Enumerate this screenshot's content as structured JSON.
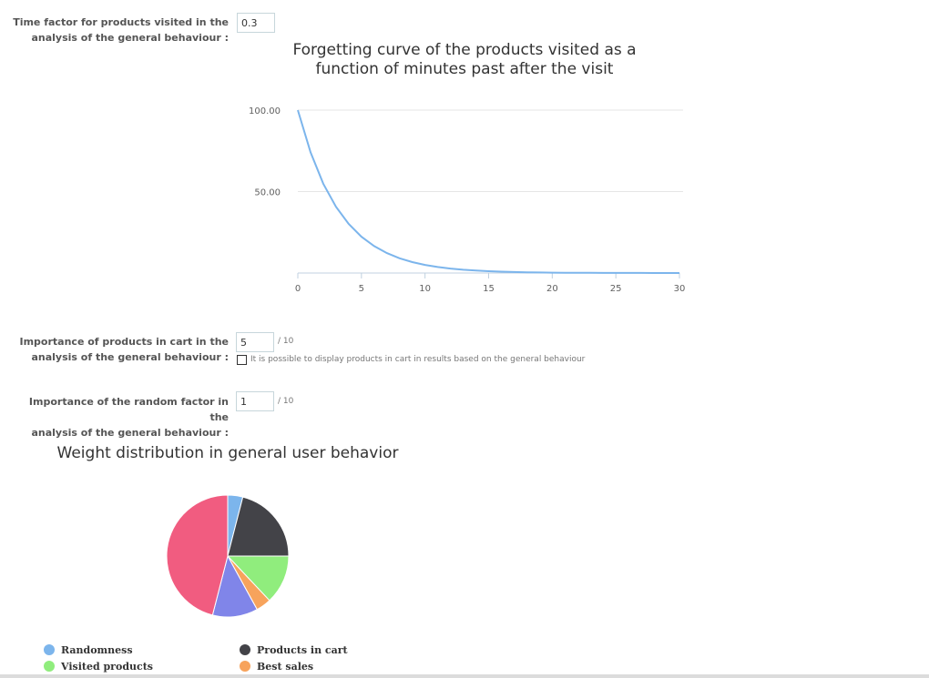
{
  "time_factor": {
    "label_line1": "Time factor for products visited in the",
    "label_line2": "analysis of the general behaviour :",
    "value": "0.3"
  },
  "cart_importance": {
    "label_line1": "Importance of products in cart in the",
    "label_line2": "analysis of the general behaviour :",
    "value": "5",
    "suffix": "/ 10",
    "checkbox_label": "It is possible to display products in cart in results based on the general behaviour",
    "checkbox_checked": false
  },
  "random_importance": {
    "label_line1": "Importance of the random factor in the",
    "label_line2": "analysis of the general behaviour :",
    "value": "1",
    "suffix": "/ 10"
  },
  "chart_data": [
    {
      "type": "line",
      "title_line1": "Forgetting curve of the products visited as a",
      "title_line2": "function of minutes past after the visit",
      "x": [
        0,
        1,
        2,
        3,
        4,
        5,
        6,
        7,
        8,
        9,
        10,
        11,
        12,
        13,
        14,
        15,
        16,
        17,
        18,
        19,
        20,
        21,
        22,
        23,
        24,
        25,
        26,
        27,
        28,
        29,
        30
      ],
      "y": [
        100,
        74.08,
        54.88,
        40.66,
        30.12,
        22.31,
        16.53,
        12.25,
        9.07,
        6.72,
        4.98,
        3.69,
        2.73,
        2.02,
        1.5,
        1.11,
        0.82,
        0.61,
        0.45,
        0.33,
        0.25,
        0.18,
        0.14,
        0.1,
        0.07,
        0.06,
        0.04,
        0.03,
        0.02,
        0.02,
        0.01
      ],
      "xlim": [
        0,
        30
      ],
      "ylim": [
        0,
        100
      ],
      "x_ticks": [
        0,
        5,
        10,
        15,
        20,
        25,
        30
      ],
      "y_ticks": [
        "50.00",
        "100.00"
      ],
      "grid": true,
      "line_color": "#7cb5ec"
    },
    {
      "type": "pie",
      "title": "Weight distribution in general user behavior",
      "legend_position": "bottom",
      "series": [
        {
          "name": "Randomness",
          "value": 4,
          "color": "#7cb5ec"
        },
        {
          "name": "Products in cart",
          "value": 21,
          "color": "#434348"
        },
        {
          "name": "Visited products",
          "value": 13,
          "color": "#90ed7d"
        },
        {
          "name": "Best sales",
          "value": 4,
          "color": "#f7a35c"
        },
        {
          "name": "",
          "value": 12,
          "color": "#8085e9"
        },
        {
          "name": "",
          "value": 46,
          "color": "#f15c80"
        }
      ]
    }
  ]
}
